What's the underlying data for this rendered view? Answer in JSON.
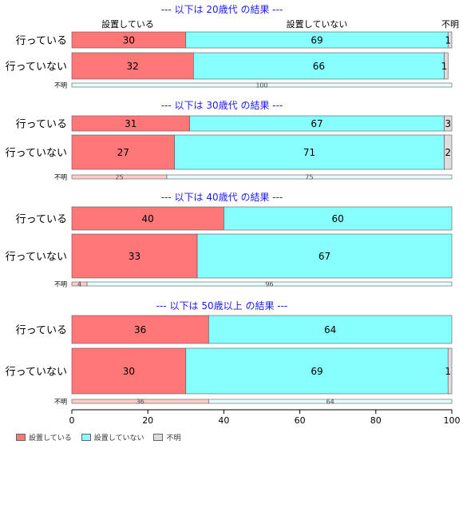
{
  "chart_data": {
    "type": "bar",
    "orientation": "horizontal",
    "stacked": "percent",
    "column_headers": [
      "設置している",
      "設置していない",
      "不明"
    ],
    "xlim": [
      0,
      100
    ],
    "x_ticks": [
      "0",
      "20",
      "40",
      "60",
      "80",
      "100"
    ],
    "legend_position": "bottom-left",
    "series": [
      {
        "name": "設置している",
        "color": "#ff7777"
      },
      {
        "name": "設置していない",
        "color": "#88ffff"
      },
      {
        "name": "不明",
        "color": "#dddddd"
      }
    ],
    "panels": [
      {
        "title": "--- 以下は 20歳代 の結果 ---",
        "rows": [
          {
            "label": "行っている",
            "values": [
              30,
              69,
              1
            ],
            "labels": [
              "30",
              "69",
              "1"
            ]
          },
          {
            "label": "行っていない",
            "values": [
              32,
              66,
              1
            ],
            "labels": [
              "32",
              "66",
              "1"
            ]
          },
          {
            "label": "不明",
            "values": [
              0,
              100,
              0
            ],
            "labels": [
              "",
              "100",
              ""
            ],
            "thin": true
          }
        ]
      },
      {
        "title": "--- 以下は 30歳代 の結果 ---",
        "rows": [
          {
            "label": "行っている",
            "values": [
              31,
              67,
              3
            ],
            "labels": [
              "31",
              "67",
              "3"
            ]
          },
          {
            "label": "行っていない",
            "values": [
              27,
              71,
              2
            ],
            "labels": [
              "27",
              "71",
              "2"
            ]
          },
          {
            "label": "不明",
            "values": [
              25,
              75,
              0
            ],
            "labels": [
              "25",
              "75",
              ""
            ],
            "thin": true
          }
        ]
      },
      {
        "title": "--- 以下は 40歳代 の結果 ---",
        "rows": [
          {
            "label": "行っている",
            "values": [
              40,
              60,
              0
            ],
            "labels": [
              "40",
              "60",
              ""
            ]
          },
          {
            "label": "行っていない",
            "values": [
              33,
              67,
              0
            ],
            "labels": [
              "33",
              "67",
              ""
            ]
          },
          {
            "label": "不明",
            "values": [
              4,
              96,
              0
            ],
            "labels": [
              "4",
              "96",
              ""
            ],
            "thin": true
          }
        ]
      },
      {
        "title": "--- 以下は 50歳以上 の結果 ---",
        "rows": [
          {
            "label": "行っている",
            "values": [
              36,
              64,
              0
            ],
            "labels": [
              "36",
              "64",
              ""
            ]
          },
          {
            "label": "行っていない",
            "values": [
              30,
              69,
              1
            ],
            "labels": [
              "30",
              "69",
              "1"
            ]
          },
          {
            "label": "不明",
            "values": [
              36,
              64,
              0
            ],
            "labels": [
              "36",
              "64",
              ""
            ],
            "thin": true
          }
        ]
      }
    ]
  }
}
